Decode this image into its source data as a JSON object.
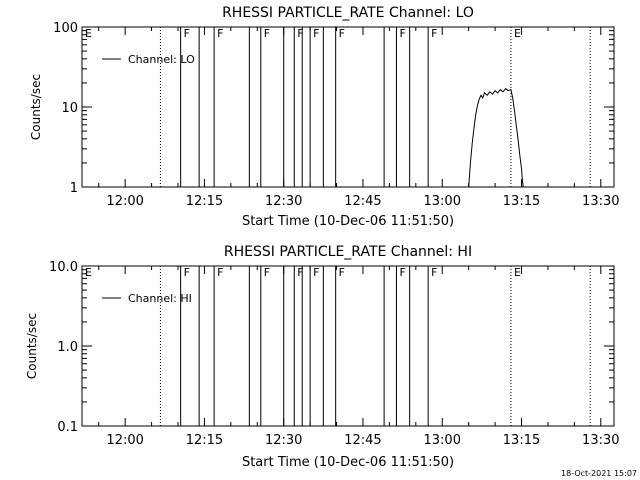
{
  "chart_data": [
    {
      "type": "line",
      "title": "RHESSI PARTICLE_RATE Channel: LO",
      "xlabel": "Start Time (10-Dec-06 11:51:50)",
      "ylabel": "Counts/sec",
      "yscale": "log",
      "ylim": [
        1,
        100
      ],
      "yticks": [
        "1",
        "10",
        "100"
      ],
      "xlim": [
        "11:51:50",
        "13:32:30"
      ],
      "xticks": [
        "12:00",
        "12:15",
        "12:30",
        "12:45",
        "13:00",
        "13:15",
        "13:30"
      ],
      "legend": {
        "entries": [
          "Channel: LO"
        ],
        "placement": "top-left"
      },
      "series": [
        {
          "name": "Channel: LO",
          "x": [
            "13:05:00",
            "13:05:20",
            "13:05:40",
            "13:06:00",
            "13:06:20",
            "13:06:40",
            "13:07:00",
            "13:07:20",
            "13:07:40",
            "13:08:00",
            "13:08:30",
            "13:09:00",
            "13:09:30",
            "13:10:00",
            "13:10:30",
            "13:11:00",
            "13:11:30",
            "13:12:00",
            "13:12:30",
            "13:13:00",
            "13:13:20",
            "13:13:40",
            "13:14:00",
            "13:14:20",
            "13:14:40",
            "13:15:00",
            "13:15:10",
            "13:15:20"
          ],
          "values": [
            1.0,
            2.0,
            3.5,
            5.5,
            8.0,
            10.5,
            12.5,
            14.0,
            13.0,
            15.0,
            14.0,
            15.5,
            14.5,
            16.0,
            15.0,
            16.5,
            15.5,
            17.0,
            16.0,
            16.5,
            13.0,
            9.0,
            6.0,
            4.0,
            2.5,
            1.7,
            1.2,
            1.0
          ]
        }
      ],
      "flag_markers": [
        {
          "time": "11:51:50",
          "label": "E",
          "style": "label"
        },
        {
          "time": "12:06:40",
          "label": "",
          "style": "dotted"
        },
        {
          "time": "12:10:30",
          "label": "F",
          "style": "solid"
        },
        {
          "time": "12:14:00",
          "label": "",
          "style": "solid"
        },
        {
          "time": "12:16:50",
          "label": "F",
          "style": "solid"
        },
        {
          "time": "12:23:30",
          "label": "",
          "style": "solid"
        },
        {
          "time": "12:25:40",
          "label": "F",
          "style": "solid"
        },
        {
          "time": "12:30:00",
          "label": "",
          "style": "solid"
        },
        {
          "time": "12:32:00",
          "label": "F",
          "style": "solid"
        },
        {
          "time": "12:33:30",
          "label": "",
          "style": "solid"
        },
        {
          "time": "12:35:00",
          "label": "F",
          "style": "solid"
        },
        {
          "time": "12:37:30",
          "label": "",
          "style": "solid"
        },
        {
          "time": "12:39:50",
          "label": "F",
          "style": "solid"
        },
        {
          "time": "12:49:00",
          "label": "",
          "style": "solid"
        },
        {
          "time": "12:51:20",
          "label": "F",
          "style": "solid"
        },
        {
          "time": "12:53:50",
          "label": "",
          "style": "solid"
        },
        {
          "time": "12:57:20",
          "label": "F",
          "style": "solid"
        },
        {
          "time": "13:13:00",
          "label": "E",
          "style": "dotted"
        },
        {
          "time": "13:28:00",
          "label": "",
          "style": "dotted"
        }
      ]
    },
    {
      "type": "line",
      "title": "RHESSI PARTICLE_RATE Channel: HI",
      "xlabel": "Start Time (10-Dec-06 11:51:50)",
      "ylabel": "Counts/sec",
      "yscale": "log",
      "ylim": [
        0.1,
        10.0
      ],
      "yticks": [
        "0.1",
        "1.0",
        "10.0"
      ],
      "xlim": [
        "11:51:50",
        "13:32:30"
      ],
      "xticks": [
        "12:00",
        "12:15",
        "12:30",
        "12:45",
        "13:00",
        "13:15",
        "13:30"
      ],
      "legend": {
        "entries": [
          "Channel: HI"
        ],
        "placement": "top-left"
      },
      "series": [
        {
          "name": "Channel: HI",
          "x": [],
          "values": []
        }
      ],
      "flag_markers": [
        {
          "time": "11:51:50",
          "label": "E",
          "style": "label"
        },
        {
          "time": "12:06:40",
          "label": "",
          "style": "dotted"
        },
        {
          "time": "12:10:30",
          "label": "F",
          "style": "solid"
        },
        {
          "time": "12:14:00",
          "label": "",
          "style": "solid"
        },
        {
          "time": "12:16:50",
          "label": "F",
          "style": "solid"
        },
        {
          "time": "12:23:30",
          "label": "",
          "style": "solid"
        },
        {
          "time": "12:25:40",
          "label": "F",
          "style": "solid"
        },
        {
          "time": "12:30:00",
          "label": "",
          "style": "solid"
        },
        {
          "time": "12:32:00",
          "label": "F",
          "style": "solid"
        },
        {
          "time": "12:33:30",
          "label": "",
          "style": "solid"
        },
        {
          "time": "12:35:00",
          "label": "F",
          "style": "solid"
        },
        {
          "time": "12:37:30",
          "label": "",
          "style": "solid"
        },
        {
          "time": "12:39:50",
          "label": "F",
          "style": "solid"
        },
        {
          "time": "12:49:00",
          "label": "",
          "style": "solid"
        },
        {
          "time": "12:51:20",
          "label": "F",
          "style": "solid"
        },
        {
          "time": "12:53:50",
          "label": "",
          "style": "solid"
        },
        {
          "time": "12:57:20",
          "label": "F",
          "style": "solid"
        },
        {
          "time": "13:13:00",
          "label": "E",
          "style": "dotted"
        },
        {
          "time": "13:28:00",
          "label": "",
          "style": "dotted"
        }
      ]
    }
  ],
  "footer": {
    "timestamp": "18-Oct-2021 15:07"
  }
}
